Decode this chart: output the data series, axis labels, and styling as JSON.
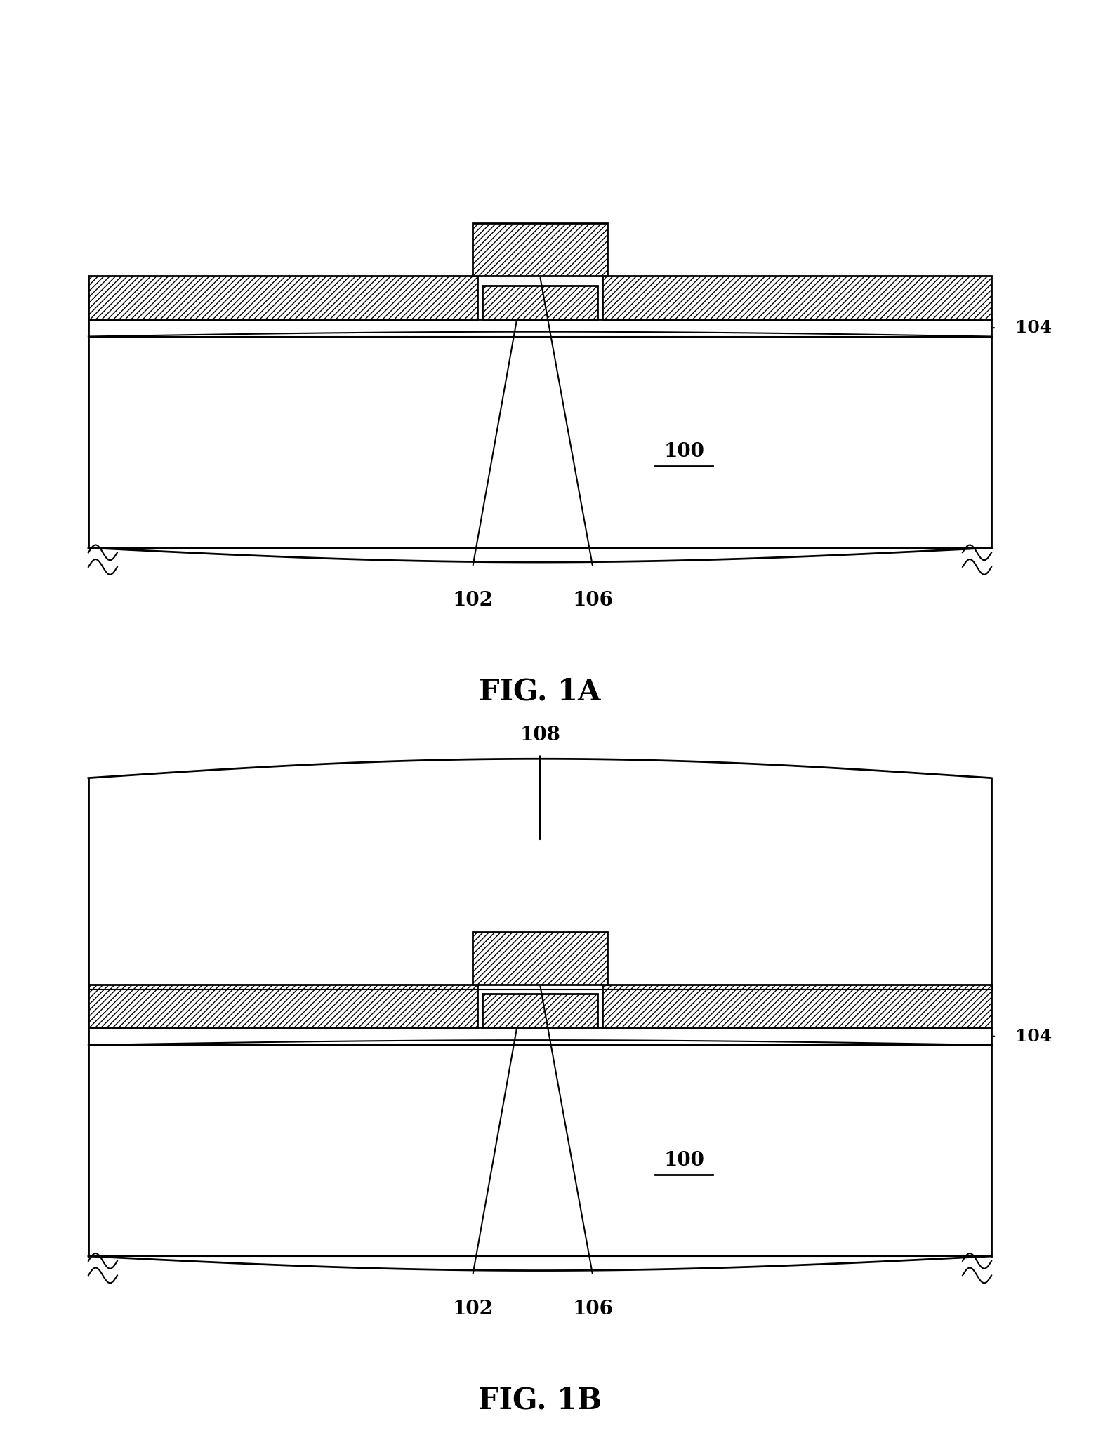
{
  "background_color": "#ffffff",
  "line_color": "#000000",
  "hatch_color": "#000000",
  "fig_width": 15.71,
  "fig_height": 20.42,
  "fig1a_label": "FIG. 1A",
  "fig1b_label": "FIG. 1B",
  "label_100": "100",
  "label_102": "102",
  "label_104": "104",
  "label_106": "106",
  "label_108": "108"
}
